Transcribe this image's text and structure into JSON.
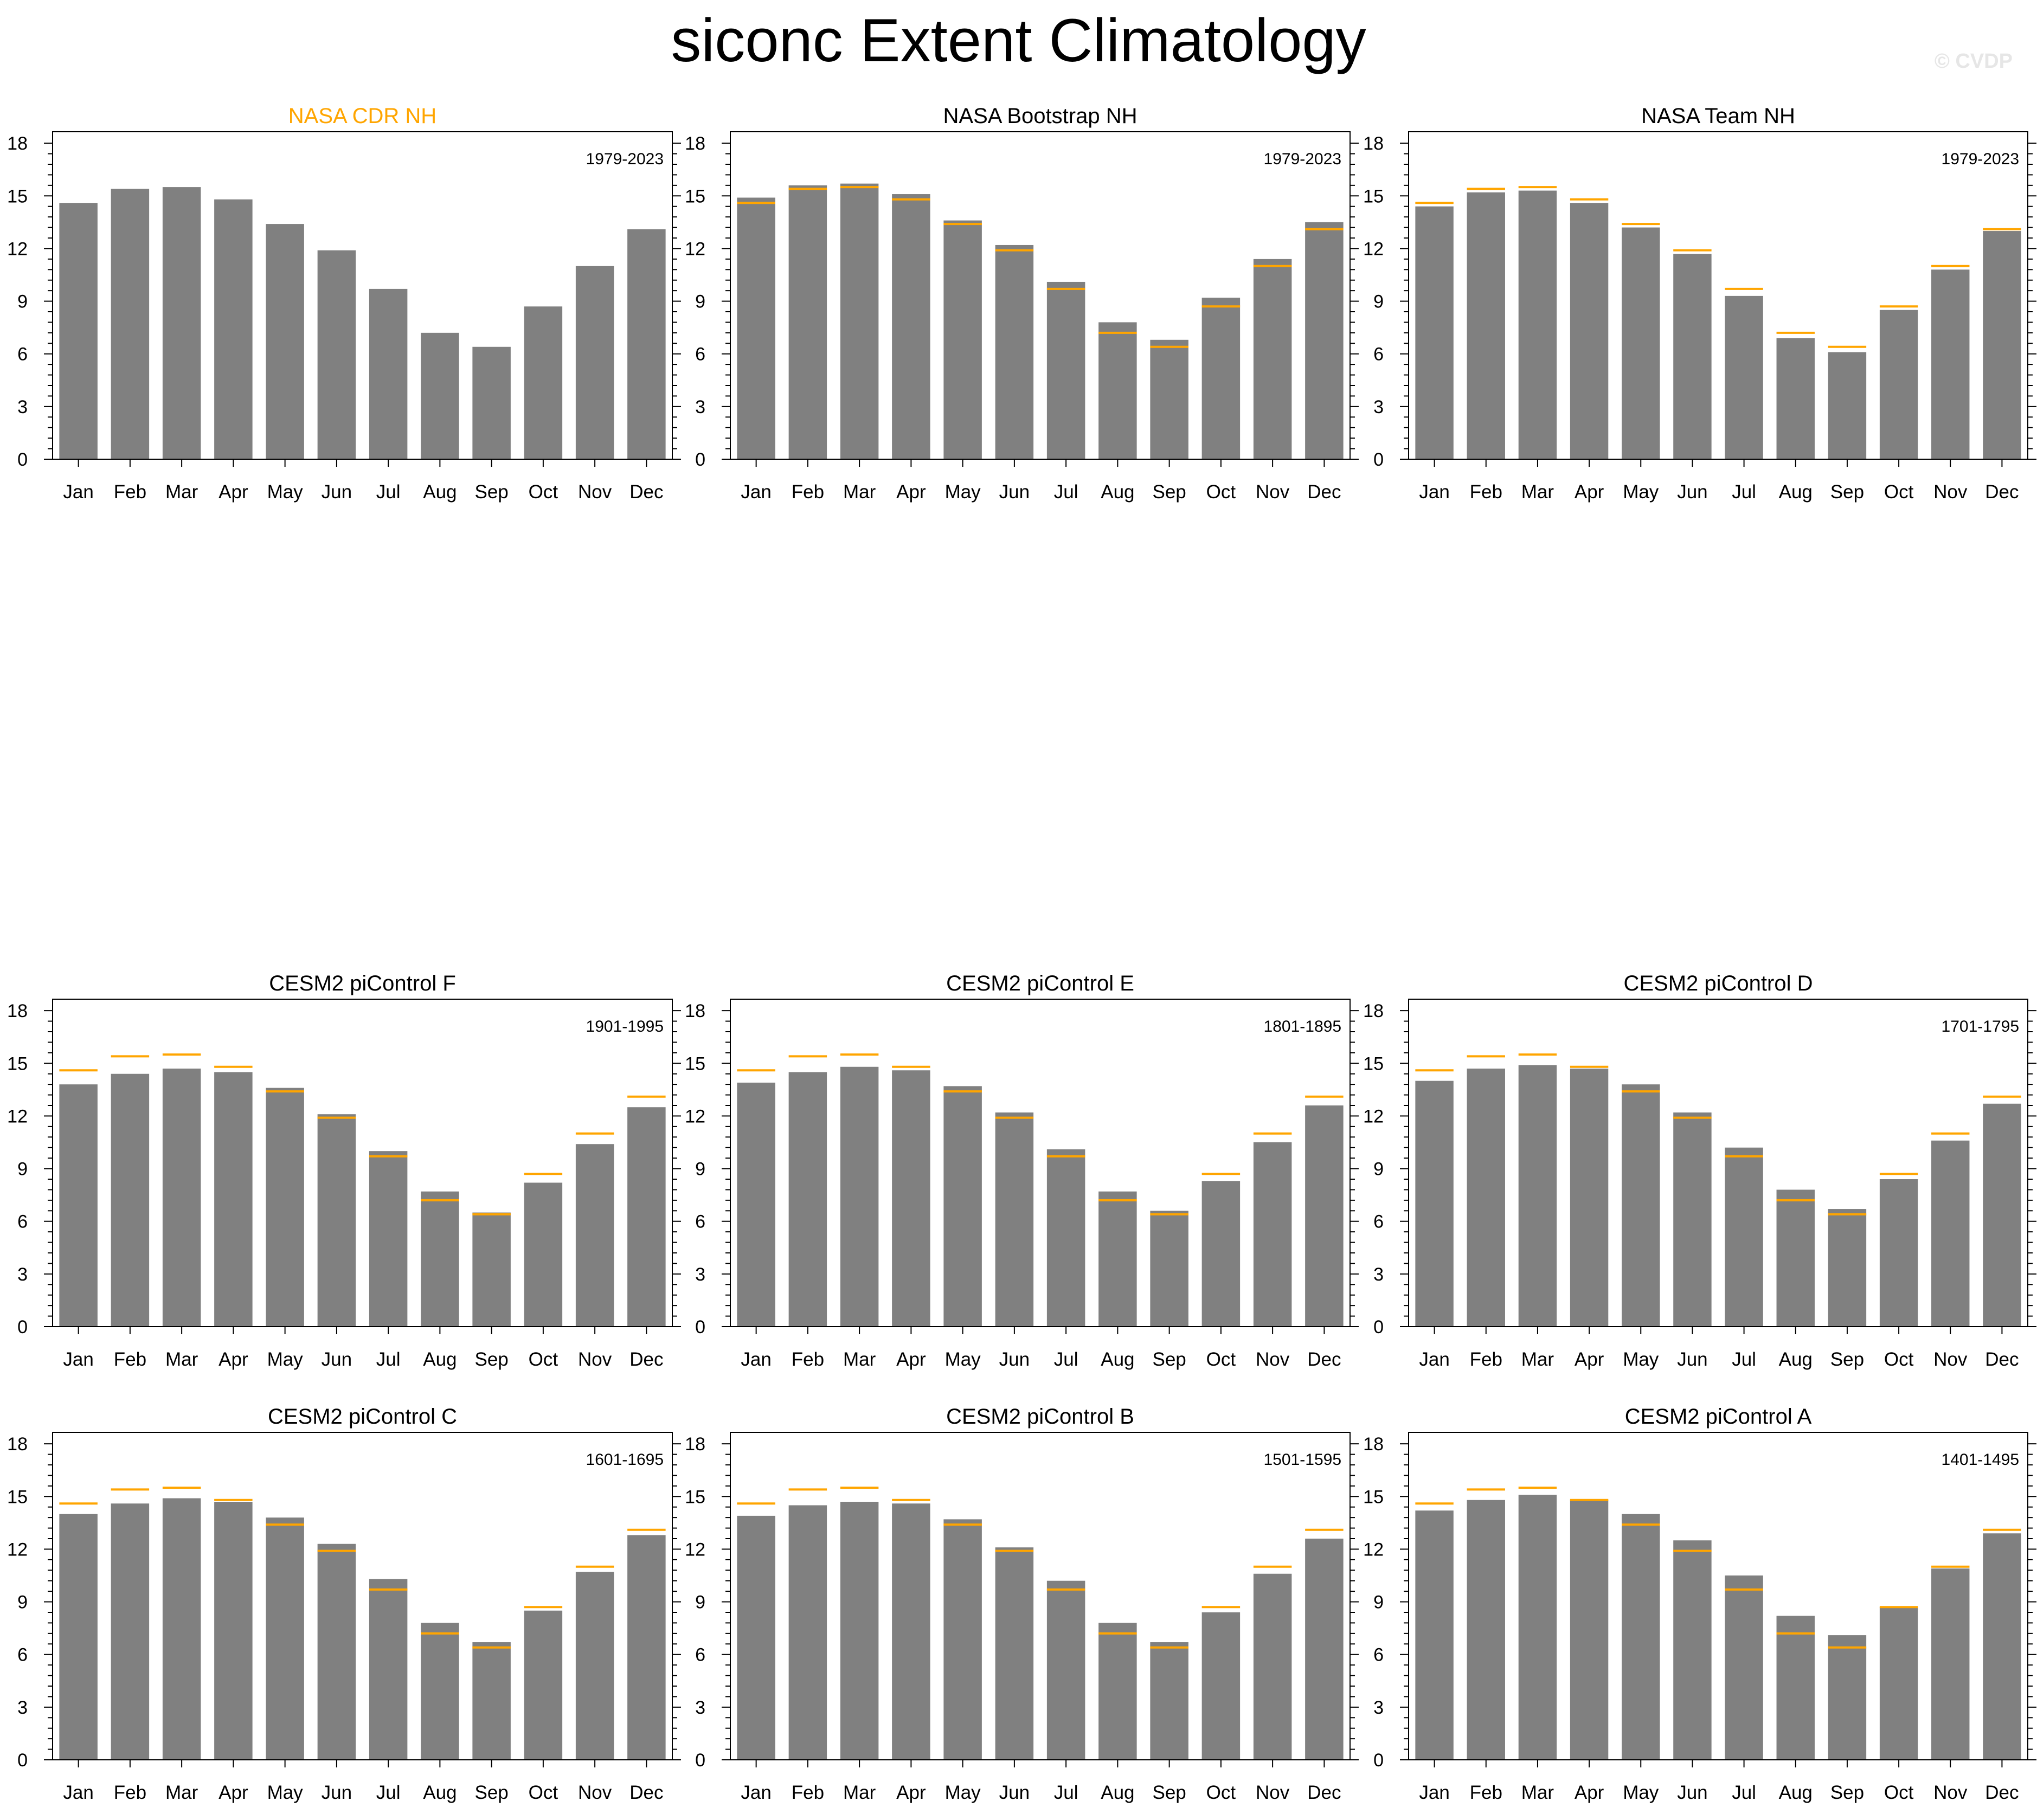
{
  "title": "siconc Extent Climatology",
  "watermark": "© CVDP",
  "colors": {
    "bar": "#808080",
    "reference_line": "#ffa500",
    "highlight_title": "#ffa500",
    "axis": "#000000"
  },
  "chart_data": [
    {
      "type": "bar",
      "title": "NASA CDR NH",
      "title_color": "#ffa500",
      "period": "1979-2023",
      "categories": [
        "Jan",
        "Feb",
        "Mar",
        "Apr",
        "May",
        "Jun",
        "Jul",
        "Aug",
        "Sep",
        "Oct",
        "Nov",
        "Dec"
      ],
      "values": [
        14.6,
        15.4,
        15.5,
        14.8,
        13.4,
        11.9,
        9.7,
        7.2,
        6.4,
        8.7,
        11.0,
        13.1
      ],
      "reference": [],
      "ylim": [
        0,
        18
      ],
      "yticks": [
        0,
        3,
        6,
        9,
        12,
        15,
        18
      ]
    },
    {
      "type": "bar",
      "title": "NASA Bootstrap NH",
      "title_color": "#000000",
      "period": "1979-2023",
      "categories": [
        "Jan",
        "Feb",
        "Mar",
        "Apr",
        "May",
        "Jun",
        "Jul",
        "Aug",
        "Sep",
        "Oct",
        "Nov",
        "Dec"
      ],
      "values": [
        14.9,
        15.6,
        15.7,
        15.1,
        13.6,
        12.2,
        10.1,
        7.8,
        6.8,
        9.2,
        11.4,
        13.5
      ],
      "reference": [
        14.6,
        15.4,
        15.5,
        14.8,
        13.4,
        11.9,
        9.7,
        7.2,
        6.4,
        8.7,
        11.0,
        13.1
      ],
      "ylim": [
        0,
        18
      ],
      "yticks": [
        0,
        3,
        6,
        9,
        12,
        15,
        18
      ]
    },
    {
      "type": "bar",
      "title": "NASA Team NH",
      "title_color": "#000000",
      "period": "1979-2023",
      "categories": [
        "Jan",
        "Feb",
        "Mar",
        "Apr",
        "May",
        "Jun",
        "Jul",
        "Aug",
        "Sep",
        "Oct",
        "Nov",
        "Dec"
      ],
      "values": [
        14.4,
        15.2,
        15.3,
        14.6,
        13.2,
        11.7,
        9.3,
        6.9,
        6.1,
        8.5,
        10.8,
        13.0
      ],
      "reference": [
        14.6,
        15.4,
        15.5,
        14.8,
        13.4,
        11.9,
        9.7,
        7.2,
        6.4,
        8.7,
        11.0,
        13.1
      ],
      "ylim": [
        0,
        18
      ],
      "yticks": [
        0,
        3,
        6,
        9,
        12,
        15,
        18
      ]
    },
    {
      "type": "bar",
      "title": "CESM2 piControl F",
      "title_color": "#000000",
      "period": "1901-1995",
      "categories": [
        "Jan",
        "Feb",
        "Mar",
        "Apr",
        "May",
        "Jun",
        "Jul",
        "Aug",
        "Sep",
        "Oct",
        "Nov",
        "Dec"
      ],
      "values": [
        13.8,
        14.4,
        14.7,
        14.5,
        13.6,
        12.1,
        10.0,
        7.7,
        6.5,
        8.2,
        10.4,
        12.5
      ],
      "reference": [
        14.6,
        15.4,
        15.5,
        14.8,
        13.4,
        11.9,
        9.7,
        7.2,
        6.4,
        8.7,
        11.0,
        13.1
      ],
      "ylim": [
        0,
        18
      ],
      "yticks": [
        0,
        3,
        6,
        9,
        12,
        15,
        18
      ]
    },
    {
      "type": "bar",
      "title": "CESM2 piControl E",
      "title_color": "#000000",
      "period": "1801-1895",
      "categories": [
        "Jan",
        "Feb",
        "Mar",
        "Apr",
        "May",
        "Jun",
        "Jul",
        "Aug",
        "Sep",
        "Oct",
        "Nov",
        "Dec"
      ],
      "values": [
        13.9,
        14.5,
        14.8,
        14.6,
        13.7,
        12.2,
        10.1,
        7.7,
        6.6,
        8.3,
        10.5,
        12.6
      ],
      "reference": [
        14.6,
        15.4,
        15.5,
        14.8,
        13.4,
        11.9,
        9.7,
        7.2,
        6.4,
        8.7,
        11.0,
        13.1
      ],
      "ylim": [
        0,
        18
      ],
      "yticks": [
        0,
        3,
        6,
        9,
        12,
        15,
        18
      ]
    },
    {
      "type": "bar",
      "title": "CESM2 piControl D",
      "title_color": "#000000",
      "period": "1701-1795",
      "categories": [
        "Jan",
        "Feb",
        "Mar",
        "Apr",
        "May",
        "Jun",
        "Jul",
        "Aug",
        "Sep",
        "Oct",
        "Nov",
        "Dec"
      ],
      "values": [
        14.0,
        14.7,
        14.9,
        14.7,
        13.8,
        12.2,
        10.2,
        7.8,
        6.7,
        8.4,
        10.6,
        12.7
      ],
      "reference": [
        14.6,
        15.4,
        15.5,
        14.8,
        13.4,
        11.9,
        9.7,
        7.2,
        6.4,
        8.7,
        11.0,
        13.1
      ],
      "ylim": [
        0,
        18
      ],
      "yticks": [
        0,
        3,
        6,
        9,
        12,
        15,
        18
      ]
    },
    {
      "type": "bar",
      "title": "CESM2 piControl C",
      "title_color": "#000000",
      "period": "1601-1695",
      "categories": [
        "Jan",
        "Feb",
        "Mar",
        "Apr",
        "May",
        "Jun",
        "Jul",
        "Aug",
        "Sep",
        "Oct",
        "Nov",
        "Dec"
      ],
      "values": [
        14.0,
        14.6,
        14.9,
        14.7,
        13.8,
        12.3,
        10.3,
        7.8,
        6.7,
        8.5,
        10.7,
        12.8
      ],
      "reference": [
        14.6,
        15.4,
        15.5,
        14.8,
        13.4,
        11.9,
        9.7,
        7.2,
        6.4,
        8.7,
        11.0,
        13.1
      ],
      "ylim": [
        0,
        18
      ],
      "yticks": [
        0,
        3,
        6,
        9,
        12,
        15,
        18
      ]
    },
    {
      "type": "bar",
      "title": "CESM2 piControl B",
      "title_color": "#000000",
      "period": "1501-1595",
      "categories": [
        "Jan",
        "Feb",
        "Mar",
        "Apr",
        "May",
        "Jun",
        "Jul",
        "Aug",
        "Sep",
        "Oct",
        "Nov",
        "Dec"
      ],
      "values": [
        13.9,
        14.5,
        14.7,
        14.6,
        13.7,
        12.1,
        10.2,
        7.8,
        6.7,
        8.4,
        10.6,
        12.6
      ],
      "reference": [
        14.6,
        15.4,
        15.5,
        14.8,
        13.4,
        11.9,
        9.7,
        7.2,
        6.4,
        8.7,
        11.0,
        13.1
      ],
      "ylim": [
        0,
        18
      ],
      "yticks": [
        0,
        3,
        6,
        9,
        12,
        15,
        18
      ]
    },
    {
      "type": "bar",
      "title": "CESM2 piControl A",
      "title_color": "#000000",
      "period": "1401-1495",
      "categories": [
        "Jan",
        "Feb",
        "Mar",
        "Apr",
        "May",
        "Jun",
        "Jul",
        "Aug",
        "Sep",
        "Oct",
        "Nov",
        "Dec"
      ],
      "values": [
        14.2,
        14.8,
        15.1,
        14.8,
        14.0,
        12.5,
        10.5,
        8.2,
        7.1,
        8.7,
        10.9,
        12.9
      ],
      "reference": [
        14.6,
        15.4,
        15.5,
        14.8,
        13.4,
        11.9,
        9.7,
        7.2,
        6.4,
        8.7,
        11.0,
        13.1
      ],
      "ylim": [
        0,
        18
      ],
      "yticks": [
        0,
        3,
        6,
        9,
        12,
        15,
        18
      ]
    }
  ]
}
